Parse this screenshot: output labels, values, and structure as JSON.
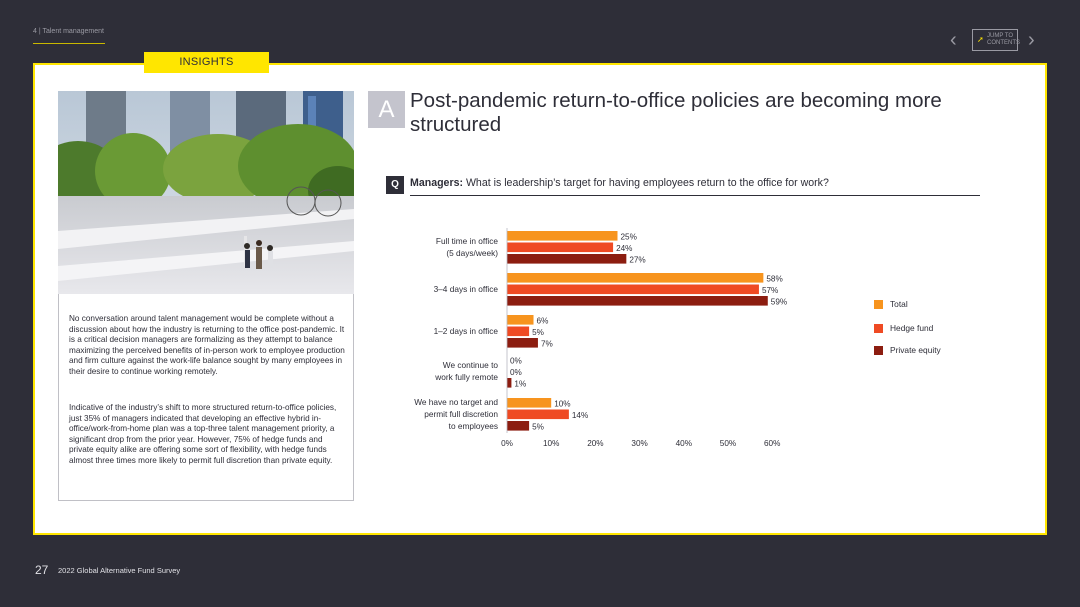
{
  "nav": {
    "breadcrumb": "4 | Talent management",
    "jump_label": "JUMP TO CONTENTS"
  },
  "badge": {
    "label": "INSIGHTS"
  },
  "section_letter": "A",
  "title": "Post-pandemic return-to-office policies are becoming more structured",
  "question": {
    "marker": "Q",
    "lead": "Managers:",
    "text": "What is leadership’s target for having employees return to the office for work?"
  },
  "body": {
    "paragraph1": "No conversation around talent management would be complete without a discussion about how the industry is returning to the office post-pandemic. It is a critical decision managers are formalizing as they attempt to balance maximizing the perceived benefits of in-person work to employee production and firm culture against the work-life balance sought by many employees in their desire to continue working remotely.",
    "paragraph2": "Indicative of the industry’s shift to more structured return-to-office policies, just 35% of managers indicated that developing an effective hybrid in-office/work-from-home plan was a top-three talent management priority, a significant drop from the prior year. However, 75% of hedge funds and private equity alike are offering some sort of flexibility, with hedge funds almost three times more likely to permit full discretion than private equity."
  },
  "footer": {
    "page": "27",
    "title": "2022 Global Alternative Fund Survey"
  },
  "chart_data": {
    "type": "bar",
    "orientation": "horizontal",
    "categories": [
      [
        "Full time in office",
        "(5 days/week)"
      ],
      [
        "3–4 days in office"
      ],
      [
        "1–2 days in office"
      ],
      [
        "We continue to",
        "work fully remote"
      ],
      [
        "We have no target and",
        "permit full discretion",
        "to employees"
      ]
    ],
    "series": [
      {
        "name": "Total",
        "color": "#f7941e",
        "values": [
          25,
          58,
          6,
          0,
          10
        ]
      },
      {
        "name": "Hedge fund",
        "color": "#ef4a23",
        "values": [
          24,
          57,
          5,
          0,
          14
        ]
      },
      {
        "name": "Private equity",
        "color": "#8c1d10",
        "values": [
          27,
          59,
          7,
          1,
          5
        ]
      }
    ],
    "xlim": [
      0,
      60
    ],
    "xticks": [
      "0%",
      "10%",
      "20%",
      "30%",
      "40%",
      "50%",
      "60%"
    ],
    "value_suffix": "%",
    "legend": "right",
    "grid": false
  }
}
